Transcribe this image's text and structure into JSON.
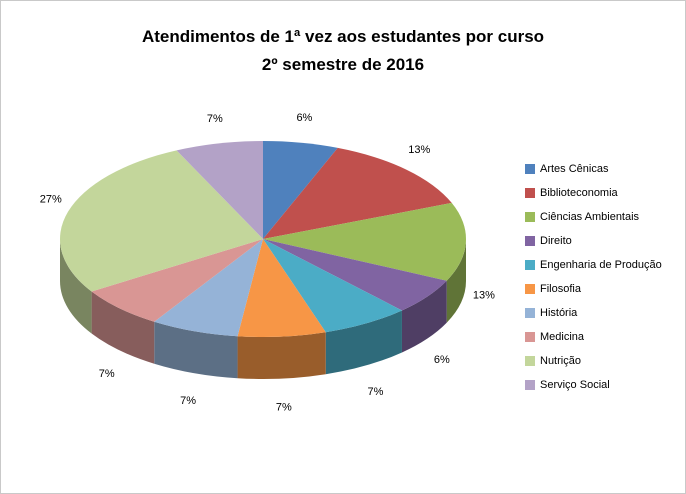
{
  "chart_data": {
    "type": "pie",
    "effect": "3d",
    "title_line1": "Atendimentos de 1ª vez aos estudantes por curso",
    "title_line2": "2º semestre de 2016",
    "categories": [
      "Artes Cênicas",
      "Biblioteconomia",
      "Ciências Ambientais",
      "Direito",
      "Engenharia de Produção",
      "Filosofia",
      "História",
      "Medicina",
      "Nutrição",
      "Serviço Social"
    ],
    "values": [
      6,
      13,
      13,
      6,
      7,
      7,
      7,
      7,
      27,
      7
    ],
    "labels": [
      "6%",
      "13%",
      "13%",
      "6%",
      "7%",
      "7%",
      "7%",
      "7%",
      "27%",
      "7%"
    ],
    "colors": [
      "#4F81BD",
      "#C0504D",
      "#9BBB59",
      "#8064A2",
      "#4BACC6",
      "#F79646",
      "#95B3D7",
      "#D99694",
      "#C3D69B",
      "#B3A2C7"
    ],
    "layout": {
      "legend_position": "right",
      "label_position": "outside-end",
      "start_angle_deg": 0,
      "direction": "clockwise",
      "border_color": "#c9c9c9",
      "background_color": "#ffffff"
    }
  }
}
